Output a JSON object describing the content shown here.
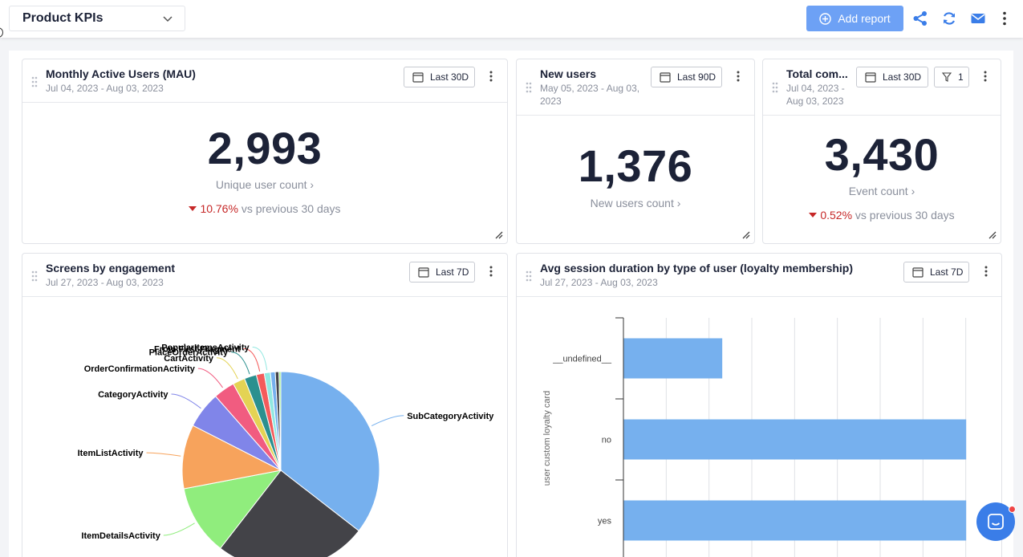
{
  "dashboard": {
    "title": "Product KPIs"
  },
  "toolbar": {
    "add_report_label": "Add report"
  },
  "icons": {
    "share": "share-icon",
    "refresh": "refresh-icon",
    "mail": "mail-icon",
    "more": "more-vertical-icon"
  },
  "colors": {
    "accent": "#6da1f5",
    "negative": "#c62828",
    "pie": [
      "#76b0ee",
      "#434348",
      "#90ed7d",
      "#f7a35c",
      "#8085e9",
      "#f15c80",
      "#e4d354",
      "#2b908f",
      "#f45b5b",
      "#91e8e1"
    ],
    "bar": "#76b0ee"
  },
  "cards": {
    "mau": {
      "title": "Monthly Active Users (MAU)",
      "date": "Jul 04, 2023 - Aug 03, 2023",
      "range": "Last 30D",
      "value": "2,993",
      "label": "Unique user count ›",
      "delta": "10.76%",
      "delta_text": "vs previous 30 days"
    },
    "new_users": {
      "title": "New users",
      "date": "May 05, 2023 - Aug 03, 2023",
      "range": "Last 90D",
      "value": "1,376",
      "label": "New users count ›"
    },
    "total": {
      "title": "Total com...",
      "date": "Jul 04, 2023 - Aug 03, 2023",
      "range": "Last 30D",
      "filter_count": "1",
      "value": "3,430",
      "label": "Event count ›",
      "delta": "0.52%",
      "delta_text": "vs previous 30 days"
    },
    "screens": {
      "title": "Screens by engagement",
      "date": "Jul 27, 2023 - Aug 03, 2023",
      "range": "Last 7D"
    },
    "session": {
      "title": "Avg session duration by type of user (loyalty membership)",
      "date": "Jul 27, 2023 - Aug 03, 2023",
      "range": "Last 7D"
    }
  },
  "chart_data": [
    {
      "type": "pie",
      "title": "Screens by engagement",
      "slices": [
        {
          "label": "SubCategoryActivity",
          "value": 35.5
        },
        {
          "label": "",
          "value": 25.0
        },
        {
          "label": "ItemDetailsActivity",
          "value": 11.5
        },
        {
          "label": "ItemListActivity",
          "value": 10.5
        },
        {
          "label": "CategoryActivity",
          "value": 6.0
        },
        {
          "label": "OrderConfirmationActivity",
          "value": 3.5
        },
        {
          "label": "CartActivity",
          "value": 2.0
        },
        {
          "label": "PlaceOrderActivity",
          "value": 2.0
        },
        {
          "label": "From First Fragment",
          "value": 1.3
        },
        {
          "label": "PopularItemsActivity",
          "value": 1.0
        },
        {
          "label": "",
          "value": 0.8
        },
        {
          "label": "",
          "value": 0.6
        },
        {
          "label": "",
          "value": 0.3
        }
      ]
    },
    {
      "type": "bar",
      "orientation": "horizontal",
      "title": "Avg session duration by type of user (loyalty membership)",
      "ylabel": "user custom loyalty card",
      "categories": [
        "__undefined__",
        "no",
        "yes"
      ],
      "values": [
        2.3,
        8.0,
        8.0
      ],
      "xlim": [
        0,
        9
      ]
    }
  ]
}
